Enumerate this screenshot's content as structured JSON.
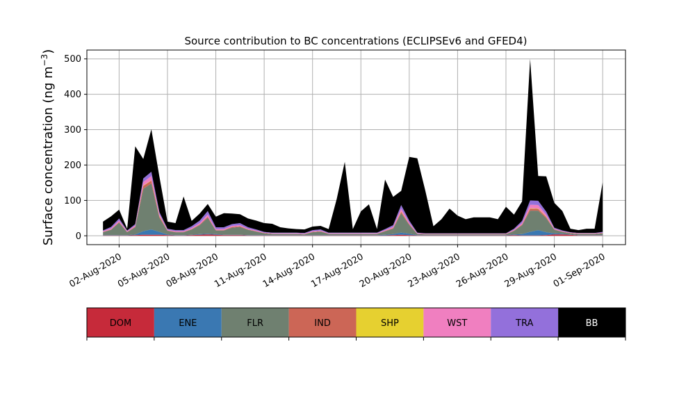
{
  "chart_data": {
    "type": "area",
    "title": "Source contribution to BC concentrations (ECLIPSEv6 and GFED4)",
    "ylabel_main": "Surface concentration (ng m",
    "ylabel_sup": "−3",
    "ylabel_close": ")",
    "xlabel": "",
    "ylim": [
      -25,
      525
    ],
    "yticks": [
      0,
      100,
      200,
      300,
      400,
      500
    ],
    "grid": true,
    "x_start": "2020-07-31",
    "x_tick_dates": [
      "2020-08-02",
      "2020-08-05",
      "2020-08-08",
      "2020-08-11",
      "2020-08-14",
      "2020-08-17",
      "2020-08-20",
      "2020-08-23",
      "2020-08-26",
      "2020-08-29",
      "2020-09-01"
    ],
    "x_tick_labels": [
      "02-Aug-2020",
      "05-Aug-2020",
      "08-Aug-2020",
      "11-Aug-2020",
      "14-Aug-2020",
      "17-Aug-2020",
      "20-Aug-2020",
      "23-Aug-2020",
      "26-Aug-2020",
      "29-Aug-2020",
      "01-Sep-2020"
    ],
    "series_names": [
      "DOM",
      "ENE",
      "FLR",
      "IND",
      "SHP",
      "WST",
      "TRA",
      "BB"
    ],
    "series_colors": [
      "#c62a3a",
      "#3a78b2",
      "#6f8070",
      "#cc6656",
      "#e6d030",
      "#f07fc0",
      "#9370db",
      "#000000"
    ],
    "legend_text_colors": [
      "#000000",
      "#000000",
      "#000000",
      "#000000",
      "#000000",
      "#000000",
      "#000000",
      "#ffffff"
    ],
    "x": [
      "2020-08-01T00:00",
      "2020-08-01T12:00",
      "2020-08-02T00:00",
      "2020-08-02T12:00",
      "2020-08-03T00:00",
      "2020-08-03T12:00",
      "2020-08-04T00:00",
      "2020-08-04T12:00",
      "2020-08-05T00:00",
      "2020-08-05T12:00",
      "2020-08-06T00:00",
      "2020-08-06T12:00",
      "2020-08-07T00:00",
      "2020-08-07T12:00",
      "2020-08-08T00:00",
      "2020-08-08T12:00",
      "2020-08-09T00:00",
      "2020-08-09T12:00",
      "2020-08-10T00:00",
      "2020-08-10T12:00",
      "2020-08-11T00:00",
      "2020-08-11T12:00",
      "2020-08-12T00:00",
      "2020-08-12T12:00",
      "2020-08-13T00:00",
      "2020-08-13T12:00",
      "2020-08-14T00:00",
      "2020-08-14T12:00",
      "2020-08-15T00:00",
      "2020-08-15T12:00",
      "2020-08-16T00:00",
      "2020-08-16T12:00",
      "2020-08-17T00:00",
      "2020-08-17T12:00",
      "2020-08-18T00:00",
      "2020-08-18T12:00",
      "2020-08-19T00:00",
      "2020-08-19T12:00",
      "2020-08-20T00:00",
      "2020-08-20T12:00",
      "2020-08-21T00:00",
      "2020-08-21T12:00",
      "2020-08-22T00:00",
      "2020-08-22T12:00",
      "2020-08-23T00:00",
      "2020-08-23T12:00",
      "2020-08-24T00:00",
      "2020-08-24T12:00",
      "2020-08-25T00:00",
      "2020-08-25T12:00",
      "2020-08-26T00:00",
      "2020-08-26T12:00",
      "2020-08-27T00:00",
      "2020-08-27T12:00",
      "2020-08-28T00:00",
      "2020-08-28T12:00",
      "2020-08-29T00:00",
      "2020-08-29T12:00",
      "2020-08-30T00:00",
      "2020-08-30T12:00",
      "2020-08-31T00:00",
      "2020-08-31T12:00",
      "2020-09-01T00:00"
    ],
    "series": [
      {
        "name": "DOM",
        "values": [
          1,
          1,
          1,
          1,
          2,
          3,
          3,
          3,
          2,
          1,
          1,
          2,
          3,
          4,
          3,
          2,
          2,
          2,
          1,
          1,
          1,
          1,
          1,
          1,
          1,
          1,
          1,
          1,
          1,
          1,
          1,
          1,
          1,
          1,
          1,
          1,
          2,
          3,
          2,
          1,
          1,
          1,
          1,
          1,
          1,
          1,
          1,
          1,
          1,
          1,
          1,
          2,
          1,
          1,
          1,
          2,
          4,
          4,
          3,
          1,
          1,
          1,
          1
        ]
      },
      {
        "name": "ENE",
        "values": [
          1,
          1,
          1,
          1,
          2,
          10,
          15,
          8,
          2,
          1,
          1,
          1,
          2,
          2,
          2,
          1,
          1,
          1,
          1,
          1,
          1,
          1,
          1,
          1,
          1,
          1,
          1,
          1,
          1,
          1,
          1,
          1,
          1,
          1,
          1,
          2,
          3,
          6,
          4,
          1,
          1,
          1,
          1,
          1,
          1,
          1,
          1,
          1,
          1,
          1,
          1,
          2,
          4,
          10,
          15,
          8,
          3,
          2,
          1,
          1,
          1,
          1,
          1
        ]
      },
      {
        "name": "FLR",
        "values": [
          8,
          15,
          35,
          8,
          20,
          120,
          130,
          40,
          10,
          8,
          8,
          15,
          25,
          45,
          10,
          12,
          20,
          22,
          15,
          10,
          5,
          3,
          3,
          3,
          3,
          2,
          8,
          10,
          3,
          3,
          3,
          3,
          3,
          3,
          3,
          10,
          15,
          55,
          25,
          3,
          2,
          2,
          2,
          2,
          2,
          2,
          2,
          2,
          2,
          2,
          2,
          10,
          25,
          60,
          55,
          40,
          10,
          5,
          3,
          3,
          3,
          3,
          5
        ]
      },
      {
        "name": "IND",
        "values": [
          1,
          1,
          2,
          1,
          2,
          8,
          8,
          4,
          1,
          1,
          1,
          1,
          2,
          3,
          1,
          1,
          2,
          2,
          1,
          1,
          1,
          1,
          1,
          1,
          1,
          1,
          1,
          1,
          1,
          1,
          1,
          1,
          1,
          1,
          1,
          1,
          2,
          4,
          2,
          1,
          1,
          1,
          1,
          1,
          1,
          1,
          1,
          1,
          1,
          1,
          1,
          1,
          2,
          6,
          5,
          3,
          1,
          1,
          1,
          1,
          1,
          1,
          1
        ]
      },
      {
        "name": "SHP",
        "values": [
          0,
          0,
          0,
          0,
          0,
          1,
          1,
          1,
          0,
          0,
          0,
          0,
          0,
          0,
          0,
          0,
          0,
          0,
          0,
          0,
          0,
          0,
          0,
          0,
          0,
          0,
          0,
          0,
          0,
          0,
          0,
          0,
          0,
          0,
          0,
          0,
          0,
          1,
          0,
          0,
          0,
          0,
          0,
          0,
          0,
          0,
          0,
          0,
          0,
          0,
          0,
          0,
          0,
          1,
          1,
          1,
          0,
          0,
          0,
          0,
          0,
          0,
          0
        ]
      },
      {
        "name": "WST",
        "values": [
          2,
          3,
          4,
          2,
          3,
          10,
          12,
          5,
          2,
          2,
          2,
          3,
          4,
          6,
          3,
          3,
          3,
          3,
          2,
          2,
          1,
          1,
          1,
          1,
          1,
          1,
          2,
          2,
          1,
          1,
          1,
          1,
          1,
          1,
          1,
          2,
          3,
          8,
          4,
          1,
          1,
          1,
          1,
          1,
          1,
          1,
          1,
          1,
          1,
          1,
          1,
          2,
          4,
          10,
          10,
          6,
          2,
          1,
          1,
          1,
          1,
          1,
          1
        ]
      },
      {
        "name": "TRA",
        "values": [
          2,
          4,
          6,
          2,
          4,
          10,
          12,
          6,
          3,
          3,
          3,
          5,
          7,
          10,
          5,
          5,
          5,
          6,
          4,
          3,
          2,
          2,
          2,
          2,
          2,
          2,
          3,
          3,
          2,
          2,
          2,
          2,
          2,
          2,
          2,
          3,
          5,
          10,
          6,
          2,
          1,
          1,
          1,
          1,
          1,
          1,
          1,
          1,
          1,
          1,
          1,
          3,
          6,
          12,
          12,
          8,
          3,
          2,
          1,
          1,
          1,
          1,
          2
        ]
      },
      {
        "name": "BB",
        "values": [
          25,
          30,
          25,
          5,
          220,
          55,
          120,
          100,
          20,
          20,
          95,
          15,
          20,
          20,
          30,
          40,
          30,
          25,
          25,
          25,
          25,
          25,
          15,
          12,
          10,
          10,
          10,
          10,
          10,
          95,
          200,
          10,
          60,
          80,
          10,
          140,
          80,
          40,
          180,
          210,
          120,
          20,
          40,
          70,
          50,
          40,
          45,
          45,
          45,
          40,
          75,
          40,
          55,
          400,
          70,
          100,
          70,
          55,
          10,
          8,
          12,
          12,
          140
        ]
      }
    ]
  }
}
